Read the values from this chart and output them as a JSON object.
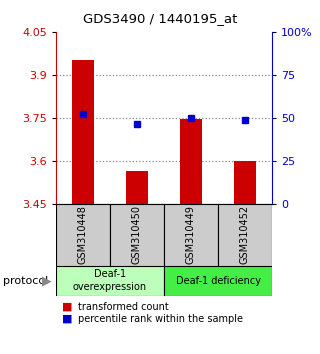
{
  "title": "GDS3490 / 1440195_at",
  "samples": [
    "GSM310448",
    "GSM310450",
    "GSM310449",
    "GSM310452"
  ],
  "bar_values": [
    3.95,
    3.565,
    3.745,
    3.6
  ],
  "bar_bottom": 3.45,
  "percentile_values": [
    3.762,
    3.728,
    3.748,
    3.742
  ],
  "ylim": [
    3.45,
    4.05
  ],
  "yticks_left": [
    3.45,
    3.6,
    3.75,
    3.9,
    4.05
  ],
  "bar_color": "#cc0000",
  "percentile_color": "#0000cc",
  "grid_color": "#888888",
  "group1_label": "Deaf-1\noverexpression",
  "group2_label": "Deaf-1 deficiency",
  "group1_color": "#bbffbb",
  "group2_color": "#44ee44",
  "protocol_label": "protocol",
  "legend_bar_label": "transformed count",
  "legend_pct_label": "percentile rank within the sample",
  "bg_color": "#ffffff",
  "plot_bg": "#ffffff",
  "ylabel_left_color": "#cc0000",
  "ylabel_right_color": "#0000cc",
  "sample_box_color": "#cccccc",
  "arrow_color": "#888888"
}
